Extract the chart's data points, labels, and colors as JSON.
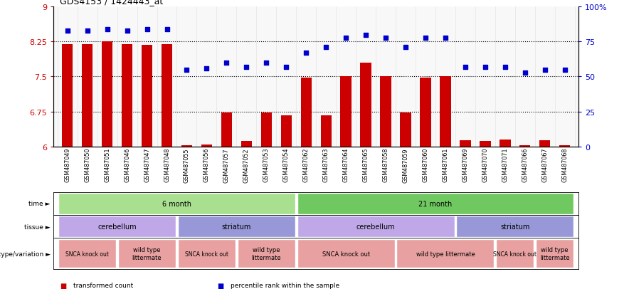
{
  "title": "GDS4153 / 1424443_at",
  "samples": [
    "GSM487049",
    "GSM487050",
    "GSM487051",
    "GSM487046",
    "GSM487047",
    "GSM487048",
    "GSM487055",
    "GSM487056",
    "GSM487057",
    "GSM487052",
    "GSM487053",
    "GSM487054",
    "GSM487062",
    "GSM487063",
    "GSM487064",
    "GSM487065",
    "GSM487058",
    "GSM487059",
    "GSM487060",
    "GSM487061",
    "GSM487069",
    "GSM487070",
    "GSM487071",
    "GSM487066",
    "GSM487067",
    "GSM487068"
  ],
  "bar_values": [
    8.2,
    8.2,
    8.25,
    8.2,
    8.18,
    8.2,
    6.02,
    6.04,
    6.72,
    6.12,
    6.72,
    6.67,
    7.47,
    6.67,
    7.5,
    7.8,
    7.5,
    6.72,
    7.47,
    7.5,
    6.13,
    6.12,
    6.15,
    6.03,
    6.13,
    6.03
  ],
  "dot_values": [
    83,
    83,
    84,
    83,
    84,
    84,
    55,
    56,
    60,
    57,
    60,
    57,
    67,
    71,
    78,
    80,
    78,
    71,
    78,
    78,
    57,
    57,
    57,
    53,
    55,
    55
  ],
  "bar_color": "#cc0000",
  "dot_color": "#0000cc",
  "ylim_left": [
    6,
    9
  ],
  "ylim_right": [
    0,
    100
  ],
  "yticks_left": [
    6,
    6.75,
    7.5,
    8.25,
    9
  ],
  "yticks_right": [
    0,
    25,
    50,
    75,
    100
  ],
  "ytick_labels_right": [
    "0",
    "25",
    "50",
    "75",
    "100%"
  ],
  "hlines": [
    6.75,
    7.5,
    8.25
  ],
  "time_spans": [
    {
      "label": "6 month",
      "start": 0,
      "end": 11,
      "color": "#a8e090"
    },
    {
      "label": "21 month",
      "start": 12,
      "end": 25,
      "color": "#70c860"
    }
  ],
  "tissue_spans": [
    {
      "label": "cerebellum",
      "start": 0,
      "end": 5,
      "color": "#c0a8e8"
    },
    {
      "label": "striatum",
      "start": 6,
      "end": 11,
      "color": "#9898d8"
    },
    {
      "label": "cerebellum",
      "start": 12,
      "end": 19,
      "color": "#c0a8e8"
    },
    {
      "label": "striatum",
      "start": 20,
      "end": 25,
      "color": "#9898d8"
    }
  ],
  "genotype_spans": [
    {
      "label": "SNCA knock out",
      "start": 0,
      "end": 2,
      "color": "#e8a0a0",
      "fs": 5.5
    },
    {
      "label": "wild type\nlittermate",
      "start": 3,
      "end": 5,
      "color": "#e8a0a0",
      "fs": 6.0
    },
    {
      "label": "SNCA knock out",
      "start": 6,
      "end": 8,
      "color": "#e8a0a0",
      "fs": 5.5
    },
    {
      "label": "wild type\nlittermate",
      "start": 9,
      "end": 11,
      "color": "#e8a0a0",
      "fs": 6.0
    },
    {
      "label": "SNCA knock out",
      "start": 12,
      "end": 16,
      "color": "#e8a0a0",
      "fs": 6.0
    },
    {
      "label": "wild type littermate",
      "start": 17,
      "end": 21,
      "color": "#e8a0a0",
      "fs": 6.0
    },
    {
      "label": "SNCA knock out",
      "start": 22,
      "end": 23,
      "color": "#e8a0a0",
      "fs": 5.5
    },
    {
      "label": "wild type\nlittermate",
      "start": 24,
      "end": 25,
      "color": "#e8a0a0",
      "fs": 6.0
    }
  ],
  "legend_items": [
    {
      "label": "transformed count",
      "color": "#cc0000"
    },
    {
      "label": "percentile rank within the sample",
      "color": "#0000cc"
    }
  ]
}
